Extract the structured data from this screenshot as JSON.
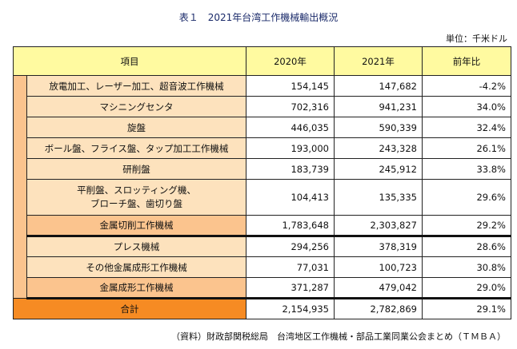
{
  "title": "表１　2021年台湾工作機械輸出概況",
  "unit": "単位：千米ドル",
  "headers": [
    "項目",
    "2020年",
    "2021年",
    "前年比"
  ],
  "rows": [
    {
      "label": "放電加工、レーザー加工、超音波工作機械",
      "y2020": "154,145",
      "y2021": "147,682",
      "ratio": "-4.2%"
    },
    {
      "label": "マシニングセンタ",
      "y2020": "702,316",
      "y2021": "941,231",
      "ratio": "34.0%"
    },
    {
      "label": "旋盤",
      "y2020": "446,035",
      "y2021": "590,339",
      "ratio": "32.4%"
    },
    {
      "label": "ボール盤、フライス盤、タップ加工工作機械",
      "y2020": "193,000",
      "y2021": "243,328",
      "ratio": "26.1%"
    },
    {
      "label": "研削盤",
      "y2020": "183,739",
      "y2021": "245,912",
      "ratio": "33.8%"
    },
    {
      "label_line1": "平削盤、スロッティング機、",
      "label_line2": "ブローチ盤、歯切り盤",
      "y2020": "104,413",
      "y2021": "135,335",
      "ratio": "29.6%"
    },
    {
      "label": "金属切削工作機械",
      "y2020": "1,783,648",
      "y2021": "2,303,827",
      "ratio": "29.2%"
    },
    {
      "label": "プレス機械",
      "y2020": "294,256",
      "y2021": "378,319",
      "ratio": "28.6%"
    },
    {
      "label": "その他金属成形工作機械",
      "y2020": "77,031",
      "y2021": "100,723",
      "ratio": "30.8%"
    },
    {
      "label": "金属成形工作機械",
      "y2020": "371,287",
      "y2021": "479,042",
      "ratio": "29.0%"
    },
    {
      "label": "合計",
      "y2020": "2,154,935",
      "y2021": "2,782,869",
      "ratio": "29.1%"
    }
  ],
  "source": "（資料）財政部関税総局　台湾地区工作機械・部品工業同業公会まとめ（ＴＭＢＡ）",
  "colors": {
    "header": "#fffaa0",
    "item": "#fde2bd",
    "subtotal": "#fbc48e",
    "total": "#f68b23"
  }
}
